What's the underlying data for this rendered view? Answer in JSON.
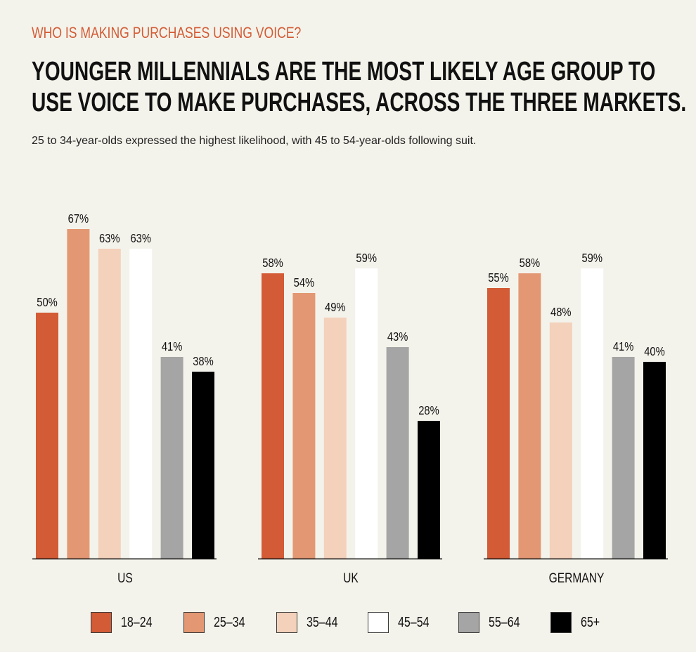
{
  "header": {
    "kicker": "WHO IS MAKING PURCHASES USING VOICE?",
    "headline_line1": "YOUNGER MILLENNIALS ARE THE MOST LIKELY AGE GROUP TO",
    "headline_line2": "USE VOICE TO MAKE PURCHASES, ACROSS THE THREE MARKETS.",
    "subtitle": "25 to 34-year-olds expressed the highest likelihood, with 45 to 54-year-olds following suit."
  },
  "chart_data": {
    "type": "bar",
    "categories": [
      "US",
      "UK",
      "GERMANY"
    ],
    "series": [
      {
        "name": "18–24",
        "color": "#d35b35",
        "values": [
          50,
          58,
          55
        ]
      },
      {
        "name": "25–34",
        "color": "#e39873",
        "values": [
          67,
          54,
          58
        ]
      },
      {
        "name": "35–44",
        "color": "#f3d1bb",
        "values": [
          63,
          49,
          48
        ]
      },
      {
        "name": "45–54",
        "color": "#ffffff",
        "values": [
          63,
          59,
          59
        ]
      },
      {
        "name": "55–64",
        "color": "#a5a5a5",
        "values": [
          41,
          43,
          41
        ]
      },
      {
        "name": "65+",
        "color": "#000000",
        "values": [
          38,
          28,
          40
        ]
      }
    ],
    "value_suffix": "%",
    "ylim": [
      0,
      70
    ],
    "grid": false,
    "legend_position": "bottom"
  }
}
